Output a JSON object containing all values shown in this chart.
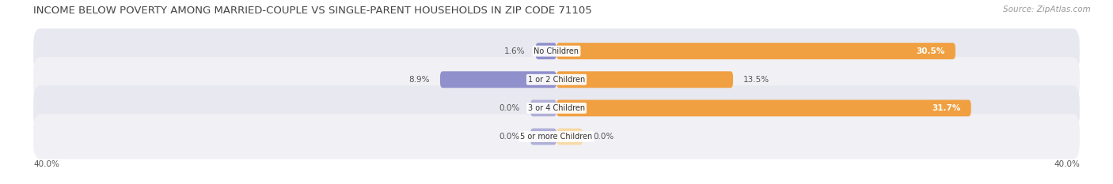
{
  "title": "INCOME BELOW POVERTY AMONG MARRIED-COUPLE VS SINGLE-PARENT HOUSEHOLDS IN ZIP CODE 71105",
  "source": "Source: ZipAtlas.com",
  "categories": [
    "No Children",
    "1 or 2 Children",
    "3 or 4 Children",
    "5 or more Children"
  ],
  "married_values": [
    1.6,
    8.9,
    0.0,
    0.0
  ],
  "single_values": [
    30.5,
    13.5,
    31.7,
    0.0
  ],
  "married_color": "#9090cc",
  "single_color": "#f0a040",
  "married_color_light": "#b0b0d8",
  "single_color_light": "#f5c07a",
  "single_color_vlight": "#f8daa8",
  "row_bg_odd": "#e8e8f0",
  "row_bg_even": "#f0f0f5",
  "axis_max": 40.0,
  "title_fontsize": 9.5,
  "source_fontsize": 7.5,
  "label_fontsize": 7.5,
  "category_fontsize": 7.0,
  "legend_fontsize": 8,
  "value_label_dark": "#555555",
  "value_label_white": "#ffffff",
  "bg_color": "#ffffff"
}
